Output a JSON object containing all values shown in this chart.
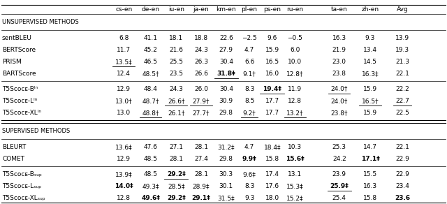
{
  "columns": [
    "cs-en",
    "de-en",
    "iu-en",
    "ja-en",
    "km-en",
    "pl-en",
    "ps-en",
    "ru-en",
    "ta-en",
    "zh-en",
    "Avg"
  ],
  "sections": [
    {
      "header": "UNSUPERVISED METHODS",
      "rows": [
        {
          "name": "sentBLEU",
          "values": [
            "6.8",
            "41.1",
            "18.1",
            "18.8",
            "22.6",
            "−2.5",
            "9.6",
            "−0.5",
            "16.3",
            "9.3",
            "13.9"
          ],
          "bold": [
            false,
            false,
            false,
            false,
            false,
            false,
            false,
            false,
            false,
            false,
            false
          ],
          "underline": [
            false,
            false,
            false,
            false,
            false,
            false,
            false,
            false,
            false,
            false,
            false
          ]
        },
        {
          "name": "BERTScore",
          "values": [
            "11.7",
            "45.2",
            "21.6",
            "24.3",
            "27.9",
            "4.7",
            "15.9",
            "6.0",
            "21.9",
            "13.4",
            "19.3"
          ],
          "bold": [
            false,
            false,
            false,
            false,
            false,
            false,
            false,
            false,
            false,
            false,
            false
          ],
          "underline": [
            false,
            false,
            false,
            false,
            false,
            false,
            false,
            false,
            false,
            false,
            false
          ]
        },
        {
          "name": "PRISM",
          "values": [
            "13.5‡",
            "46.5",
            "25.5",
            "26.3",
            "30.4",
            "6.6",
            "16.5",
            "10.0",
            "23.0",
            "14.5",
            "21.3"
          ],
          "bold": [
            false,
            false,
            false,
            false,
            false,
            false,
            false,
            false,
            false,
            false,
            false
          ],
          "underline": [
            true,
            false,
            false,
            false,
            false,
            false,
            false,
            false,
            false,
            false,
            false
          ]
        },
        {
          "name": "BARTScore",
          "values": [
            "12.4",
            "48.5†",
            "23.5",
            "26.6",
            "31.8‡",
            "9.1†",
            "16.0",
            "12.8†",
            "23.8",
            "16.3‡",
            "22.1"
          ],
          "bold": [
            false,
            false,
            false,
            false,
            true,
            false,
            false,
            false,
            false,
            false,
            false
          ],
          "underline": [
            false,
            false,
            false,
            false,
            true,
            false,
            false,
            false,
            false,
            false,
            false
          ]
        }
      ]
    },
    {
      "header": null,
      "rows": [
        {
          "name": "T5Sᴄᴏᴄᴇ-Bᴵⁿ",
          "values": [
            "12.9",
            "48.4",
            "24.3",
            "26.0",
            "30.4",
            "8.3",
            "19.4‡",
            "11.9",
            "24.0†",
            "15.9",
            "22.2"
          ],
          "bold": [
            false,
            false,
            false,
            false,
            false,
            false,
            true,
            false,
            false,
            false,
            false
          ],
          "underline": [
            false,
            false,
            false,
            false,
            false,
            false,
            true,
            false,
            true,
            false,
            false
          ]
        },
        {
          "name": "T5Sᴄᴏᴄᴇ-Lᴵⁿ",
          "values": [
            "13.0†",
            "48.7†",
            "26.6†",
            "27.9†",
            "30.9",
            "8.5",
            "17.7",
            "12.8",
            "24.0†",
            "16.5†",
            "22.7"
          ],
          "bold": [
            false,
            false,
            false,
            false,
            false,
            false,
            false,
            false,
            false,
            false,
            false
          ],
          "underline": [
            false,
            false,
            true,
            true,
            false,
            false,
            false,
            false,
            false,
            true,
            true
          ]
        },
        {
          "name": "T5Sᴄᴏᴄᴇ-XLᴵⁿ",
          "values": [
            "13.0",
            "48.8†",
            "26.1†",
            "27.7†",
            "29.8",
            "9.2†",
            "17.7",
            "13.2†",
            "23.8†",
            "15.9",
            "22.5"
          ],
          "bold": [
            false,
            false,
            false,
            false,
            false,
            false,
            false,
            false,
            false,
            false,
            false
          ],
          "underline": [
            false,
            true,
            false,
            false,
            false,
            true,
            false,
            true,
            false,
            false,
            false
          ]
        }
      ]
    }
  ],
  "sections2": [
    {
      "header": "SUPERVISED METHODS",
      "rows": [
        {
          "name": "BLEURT",
          "values": [
            "13.6‡",
            "47.6",
            "27.1",
            "28.1",
            "31.2‡",
            "4.7",
            "18.4‡",
            "10.3",
            "25.3",
            "14.7",
            "22.1"
          ],
          "bold": [
            false,
            false,
            false,
            false,
            false,
            false,
            false,
            false,
            false,
            false,
            false
          ],
          "underline": [
            false,
            false,
            false,
            false,
            false,
            false,
            false,
            false,
            false,
            false,
            false
          ]
        },
        {
          "name": "COMET",
          "values": [
            "12.9",
            "48.5",
            "28.1",
            "27.4",
            "29.8",
            "9.9‡",
            "15.8",
            "15.6‡",
            "24.2",
            "17.1‡",
            "22.9"
          ],
          "bold": [
            false,
            false,
            false,
            false,
            false,
            true,
            false,
            true,
            false,
            true,
            false
          ],
          "underline": [
            false,
            false,
            false,
            false,
            false,
            false,
            false,
            false,
            false,
            false,
            false
          ]
        }
      ]
    },
    {
      "header": null,
      "rows": [
        {
          "name": "T5Sᴄᴏᴄᴇ-Bₛᵤₚ",
          "values": [
            "13.9‡",
            "48.5",
            "29.2‡",
            "28.1",
            "30.3",
            "9.6‡",
            "17.4",
            "13.1",
            "23.9",
            "15.5",
            "22.9"
          ],
          "bold": [
            false,
            false,
            true,
            false,
            false,
            false,
            false,
            false,
            false,
            false,
            false
          ],
          "underline": [
            false,
            false,
            true,
            false,
            false,
            false,
            false,
            false,
            false,
            false,
            false
          ]
        },
        {
          "name": "T5Sᴄᴏᴄᴇ-Lₛᵤₚ",
          "values": [
            "14.0‡",
            "49.3‡",
            "28.5‡",
            "28.9‡",
            "30.1",
            "8.3",
            "17.6",
            "15.3‡",
            "25.9‡",
            "16.3",
            "23.4"
          ],
          "bold": [
            true,
            false,
            false,
            false,
            false,
            false,
            false,
            false,
            true,
            false,
            false
          ],
          "underline": [
            false,
            false,
            false,
            false,
            false,
            false,
            false,
            false,
            true,
            false,
            false
          ]
        },
        {
          "name": "T5Sᴄᴏᴄᴇ-XLₛᵤₚ",
          "values": [
            "12.8",
            "49.6‡",
            "29.2‡",
            "29.1‡",
            "31.5‡",
            "9.3",
            "18.0",
            "15.2‡",
            "25.4",
            "15.8",
            "23.6"
          ],
          "bold": [
            false,
            true,
            true,
            true,
            false,
            false,
            false,
            false,
            false,
            false,
            true
          ],
          "underline": [
            false,
            false,
            false,
            false,
            false,
            false,
            false,
            false,
            false,
            false,
            false
          ]
        }
      ]
    }
  ]
}
